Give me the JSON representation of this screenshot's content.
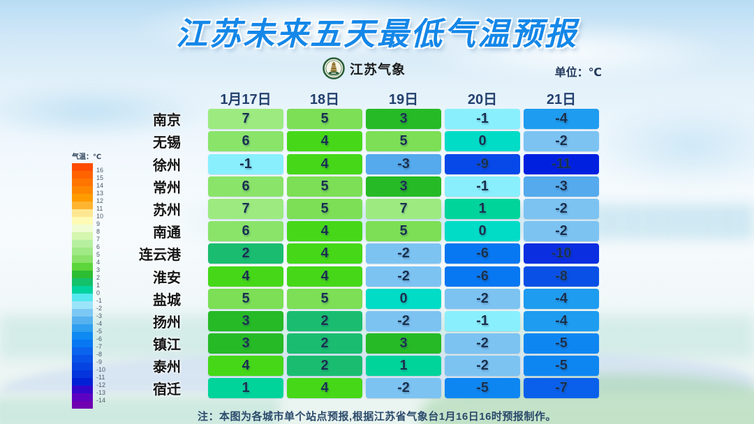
{
  "title": "江苏未来五天最低气温预报",
  "brand": {
    "name": "江苏气象"
  },
  "unit_label": "单位：℃",
  "note": "注：本图为各城市单个站点预报,根据江苏省气象台1月16日16时预报制作。",
  "legend": {
    "title": "气温：℃",
    "labels": [
      "16",
      "15",
      "14",
      "13",
      "12",
      "11",
      "10",
      "9",
      "8",
      "7",
      "6",
      "5",
      "4",
      "3",
      "2",
      "1",
      "0",
      "-1",
      "-2",
      "-3",
      "-4",
      "-5",
      "-6",
      "-7",
      "-8",
      "-9",
      "-10",
      "-11",
      "-12",
      "-13",
      "-14"
    ],
    "colors": [
      "#ff4c00",
      "#ff6300",
      "#ff7500",
      "#ff8700",
      "#ff9b00",
      "#ffb430",
      "#ffe792",
      "#fffbb6",
      "#f0fcd2",
      "#d4f6ae",
      "#b7efa0",
      "#a0e986",
      "#8ae26a",
      "#5cd63a",
      "#2dbd32",
      "#14c06a",
      "#02d29e",
      "#55e8ee",
      "#9ce4fa",
      "#7cc8f4",
      "#55b2ee",
      "#2f9ff0",
      "#0e8af2",
      "#0878f2",
      "#0a64ee",
      "#0852e8",
      "#0644e2",
      "#0334dc",
      "#0020d6",
      "#3408cc",
      "#5c02c2",
      "#7000b0"
    ]
  },
  "chart_data": {
    "type": "heatmap",
    "title": "江苏未来五天最低气温预报",
    "unit": "℃",
    "columns": [
      "1月17日",
      "18日",
      "19日",
      "20日",
      "21日"
    ],
    "rows": [
      "南京",
      "无锡",
      "徐州",
      "常州",
      "苏州",
      "南通",
      "连云港",
      "淮安",
      "盐城",
      "扬州",
      "镇江",
      "泰州",
      "宿迁"
    ],
    "values": [
      [
        7,
        5,
        3,
        -1,
        -4
      ],
      [
        6,
        4,
        5,
        0,
        -2
      ],
      [
        -1,
        4,
        -3,
        -9,
        -11
      ],
      [
        6,
        5,
        3,
        -1,
        -3
      ],
      [
        7,
        5,
        7,
        1,
        -2
      ],
      [
        6,
        4,
        5,
        0,
        -2
      ],
      [
        2,
        4,
        -2,
        -6,
        -10
      ],
      [
        4,
        4,
        -2,
        -6,
        -8
      ],
      [
        5,
        5,
        0,
        -2,
        -4
      ],
      [
        3,
        2,
        -2,
        -1,
        -4
      ],
      [
        3,
        2,
        3,
        -2,
        -5
      ],
      [
        4,
        2,
        1,
        -2,
        -5
      ],
      [
        1,
        4,
        -2,
        -5,
        -7
      ]
    ],
    "color_scale": {
      "7": "#9deb80",
      "6": "#8ae46a",
      "5": "#7cdf55",
      "4": "#46d818",
      "3": "#26ba26",
      "2": "#1abd70",
      "1": "#00d49b",
      "0": "#00dcc6",
      "-1": "#8aeffc",
      "-2": "#7cc3f2",
      "-3": "#54aaec",
      "-4": "#1e9cf0",
      "-5": "#0e86f2",
      "-6": "#0877f2",
      "-7": "#0a60ea",
      "-8": "#0850e6",
      "-9": "#0748e8",
      "-10": "#0a2ee0",
      "-11": "#0020e0"
    },
    "legend_range": [
      16,
      -14
    ],
    "accent_color": "#1487e8"
  }
}
